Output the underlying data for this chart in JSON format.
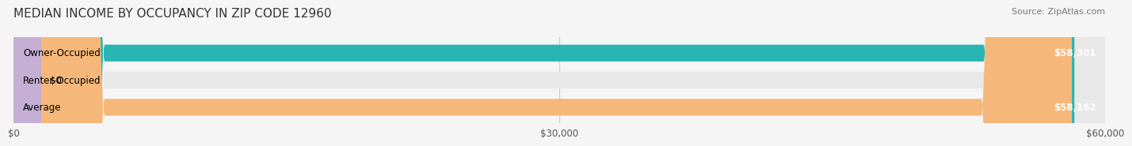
{
  "title": "MEDIAN INCOME BY OCCUPANCY IN ZIP CODE 12960",
  "source": "Source: ZipAtlas.com",
  "categories": [
    "Owner-Occupied",
    "Renter-Occupied",
    "Average"
  ],
  "values": [
    58301,
    0,
    58162
  ],
  "bar_colors": [
    "#2ab5b5",
    "#c4aed4",
    "#f5b87a"
  ],
  "bar_labels": [
    "$58,301",
    "$0",
    "$58,162"
  ],
  "xlim": [
    0,
    60000
  ],
  "xticks": [
    0,
    30000,
    60000
  ],
  "xtick_labels": [
    "$0",
    "$30,000",
    "$60,000"
  ],
  "background_color": "#f5f5f5",
  "bar_background_color": "#e8e8e8",
  "title_fontsize": 11,
  "source_fontsize": 8,
  "label_fontsize": 8.5,
  "tick_fontsize": 8.5
}
